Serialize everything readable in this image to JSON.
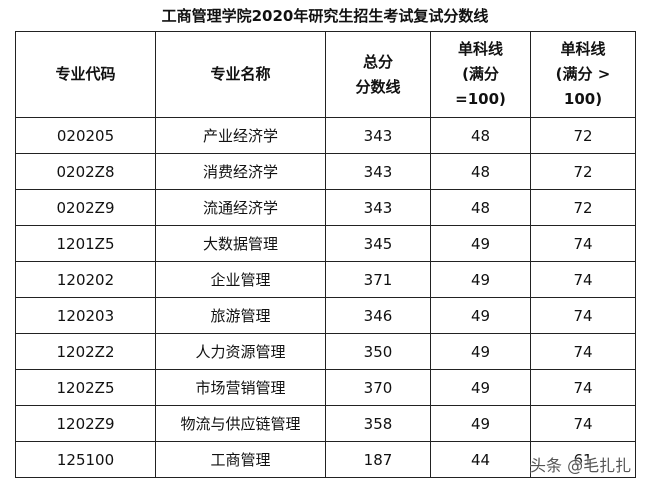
{
  "title": "工商管理学院2020年研究生招生考试复试分数线",
  "headers": [
    [
      "专业代码"
    ],
    [
      "专业名称"
    ],
    [
      "总分",
      "分数线"
    ],
    [
      "单科线",
      "(满分",
      "=100)"
    ],
    [
      "单科线",
      "(满分 >",
      "100)"
    ]
  ],
  "rows": [
    [
      "020205",
      "产业经济学",
      "343",
      "48",
      "72"
    ],
    [
      "0202Z8",
      "消费经济学",
      "343",
      "48",
      "72"
    ],
    [
      "0202Z9",
      "流通经济学",
      "343",
      "48",
      "72"
    ],
    [
      "1201Z5",
      "大数据管理",
      "345",
      "49",
      "74"
    ],
    [
      "120202",
      "企业管理",
      "371",
      "49",
      "74"
    ],
    [
      "120203",
      "旅游管理",
      "346",
      "49",
      "74"
    ],
    [
      "1202Z2",
      "人力资源管理",
      "350",
      "49",
      "74"
    ],
    [
      "1202Z5",
      "市场营销管理",
      "370",
      "49",
      "74"
    ],
    [
      "1202Z9",
      "物流与供应链管理",
      "358",
      "49",
      "74"
    ],
    [
      "125100",
      "工商管理",
      "187",
      "44",
      "61"
    ]
  ],
  "watermark": "头条 @毛扎扎"
}
